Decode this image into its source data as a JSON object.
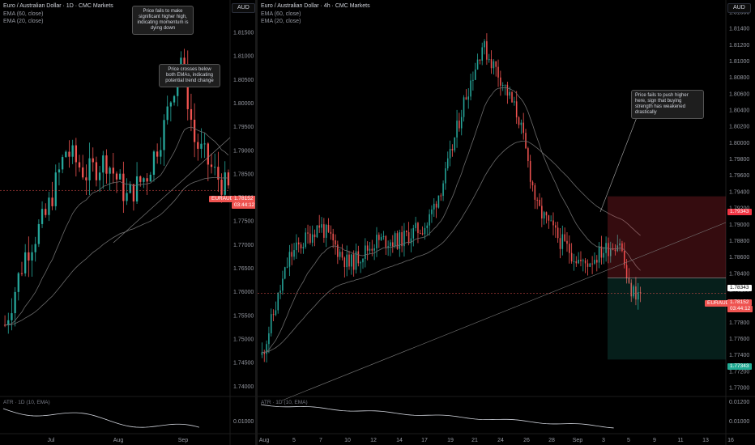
{
  "colors": {
    "up": "#26a69a",
    "down": "#ef5350",
    "ema": "#6b6b6b",
    "bg": "#000000",
    "stop": "#f23645",
    "target": "#22ab94"
  },
  "left": {
    "title": "Euro / Australian Dollar · 1D · CMC Markets",
    "ema60": "EMA (60, close)",
    "ema20": "EMA (20, close)",
    "currency": "AUD",
    "y_ticks": [
      "1.81500",
      "1.81000",
      "1.80500",
      "1.80000",
      "1.79500",
      "1.79000",
      "1.78500",
      "1.78000",
      "1.77500",
      "1.77000",
      "1.76500",
      "1.76000",
      "1.75500",
      "1.75000",
      "1.74500",
      "1.74000"
    ],
    "x_ticks": [
      "Jul",
      "Aug",
      "Sep"
    ],
    "symbol_tag": "EURAUD",
    "price": "1.78152",
    "countdown": "03:44:12",
    "note1": "Price fails to make significant higher high, indicating momentum is dying down",
    "note2": "Price crosses below both EMAs, indicating potential trend change",
    "atr_label": "ATR · 1D (10, EMA)",
    "atr_ticks": [
      "0.01000"
    ]
  },
  "right": {
    "title": "Euro / Australian Dollar · 4h · CMC Markets",
    "ema60": "EMA (60, close)",
    "ema20": "EMA (20, close)",
    "currency": "AUD",
    "y_ticks": [
      "1.81600",
      "1.81400",
      "1.81200",
      "1.81000",
      "1.80800",
      "1.80600",
      "1.80400",
      "1.80200",
      "1.80000",
      "1.79800",
      "1.79600",
      "1.79400",
      "1.79200",
      "1.79000",
      "1.78800",
      "1.78600",
      "1.78400",
      "1.78200",
      "1.78000",
      "1.77800",
      "1.77600",
      "1.77400",
      "1.77200",
      "1.77000"
    ],
    "x_ticks": [
      "Aug",
      "5",
      "7",
      "10",
      "12",
      "14",
      "17",
      "19",
      "21",
      "24",
      "26",
      "28",
      "Sep",
      "3",
      "5",
      "9",
      "11",
      "13",
      "16"
    ],
    "symbol_tag": "EURAUD",
    "price": "1.78152",
    "countdown": "03:44:12",
    "stop_price": "1.79343",
    "entry_price": "1.78343",
    "target_price": "1.77343",
    "note": "Price fails to push higher here, sign that buying strength has weakened drastically",
    "atr_label": "ATR · 1D (10, EMA)",
    "atr_ticks": [
      "0.01200",
      "0.01000"
    ]
  },
  "chart_data": [
    {
      "type": "candlestick",
      "title": "Euro / Australian Dollar · 1D · CMC Markets",
      "ylim": [
        1.7385,
        1.8205
      ],
      "x": [
        "Jul",
        "Aug",
        "Sep"
      ],
      "series": [
        {
          "name": "EMA (60, close)"
        },
        {
          "name": "EMA (20, close)"
        }
      ],
      "last_price": 1.78152
    },
    {
      "type": "candlestick",
      "title": "Euro / Australian Dollar · 4h · CMC Markets",
      "ylim": [
        1.7693,
        1.8167
      ],
      "x": [
        "Aug",
        "5",
        "7",
        "10",
        "12",
        "14",
        "17",
        "19",
        "21",
        "24",
        "26",
        "28",
        "Sep",
        "3",
        "5",
        "9",
        "11",
        "13",
        "16"
      ],
      "series": [
        {
          "name": "EMA (60, close)"
        },
        {
          "name": "EMA (20, close)"
        }
      ],
      "last_price": 1.78152,
      "position": {
        "stop": 1.79343,
        "entry": 1.78343,
        "target": 1.77343
      }
    }
  ]
}
